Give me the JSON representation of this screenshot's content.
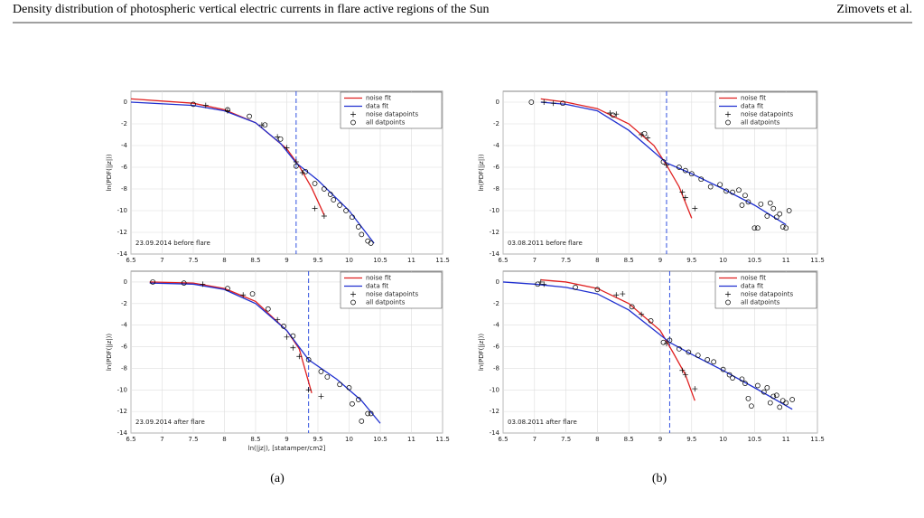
{
  "header": {
    "title": "Density distribution of photospheric vertical electric currents in flare active regions of the Sun",
    "authors": "Zimovets et al."
  },
  "captions": [
    "(a)",
    "(b)"
  ],
  "chart_data": [
    {
      "type": "line",
      "ylabel": "ln(PDF(|jz|))",
      "annotation": "23.09.2014 before flare",
      "xlim": [
        6.5,
        11.5
      ],
      "xticks": [
        6.5,
        7,
        7.5,
        8,
        8.5,
        9,
        9.5,
        10,
        10.5,
        11,
        11.5
      ],
      "ylim": [
        -14,
        1
      ],
      "yticks": [
        -14,
        -12,
        -10,
        -8,
        -6,
        -4,
        -2,
        0
      ],
      "grid": true,
      "legend": "upper right",
      "vline": 9.15,
      "vline_color": "#3050e0",
      "series": [
        {
          "name": "noise fit",
          "color": "#e02020",
          "style": "line",
          "x": [
            6.5,
            7.5,
            8,
            8.5,
            9,
            9.2,
            9.4,
            9.6
          ],
          "values": [
            0.3,
            -0.1,
            -0.7,
            -1.9,
            -4.3,
            -5.9,
            -7.9,
            -10.4
          ]
        },
        {
          "name": "data fit",
          "color": "#2030d0",
          "style": "line",
          "x": [
            6.5,
            7.5,
            8,
            8.5,
            8.9,
            9.15,
            9.5,
            10,
            10.4
          ],
          "values": [
            0,
            -0.3,
            -0.8,
            -1.9,
            -3.8,
            -5.6,
            -7.2,
            -10,
            -13
          ]
        },
        {
          "name": "noise datapoints",
          "color": "#000000",
          "style": "plus",
          "x": [
            7.7,
            8.05,
            8.6,
            8.85,
            9.0,
            9.15,
            9.25,
            9.45,
            9.6
          ],
          "values": [
            -0.3,
            -0.8,
            -2.1,
            -3.2,
            -4.2,
            -5.5,
            -6.5,
            -9.8,
            -10.5
          ]
        },
        {
          "name": "all datpoints",
          "color": "#000000",
          "style": "circle",
          "x": [
            7.5,
            8.05,
            8.4,
            8.65,
            8.9,
            9.15,
            9.3,
            9.45,
            9.6,
            9.7,
            9.75,
            9.85,
            9.95,
            10.05,
            10.15,
            10.2,
            10.3,
            10.35
          ],
          "values": [
            -0.2,
            -0.7,
            -1.3,
            -2.1,
            -3.4,
            -5.9,
            -6.4,
            -7.5,
            -8.0,
            -8.5,
            -9.0,
            -9.5,
            -10.0,
            -10.6,
            -11.5,
            -12.2,
            -12.8,
            -13.0
          ]
        }
      ]
    },
    {
      "type": "line",
      "ylabel": "ln(PDF(|jz|))",
      "xlabel": "ln(|jz|), [statamper/cm2]",
      "annotation": "23.09.2014 after flare",
      "xlim": [
        6.5,
        11.5
      ],
      "xticks": [
        6.5,
        7,
        7.5,
        8,
        8.5,
        9,
        9.5,
        10,
        10.5,
        11,
        11.5
      ],
      "ylim": [
        -14,
        1
      ],
      "yticks": [
        -14,
        -12,
        -10,
        -8,
        -6,
        -4,
        -2,
        0
      ],
      "grid": true,
      "legend": "upper right",
      "vline": 9.35,
      "vline_color": "#3050e0",
      "series": [
        {
          "name": "noise fit",
          "color": "#e02020",
          "style": "line",
          "x": [
            6.8,
            7.5,
            8,
            8.5,
            9,
            9.2,
            9.4
          ],
          "values": [
            0,
            -0.1,
            -0.6,
            -1.8,
            -4.5,
            -6.2,
            -10.3
          ]
        },
        {
          "name": "data fit",
          "color": "#2030d0",
          "style": "line",
          "x": [
            6.8,
            7.5,
            8,
            8.5,
            9,
            9.35,
            9.8,
            10.2,
            10.5
          ],
          "values": [
            -0.1,
            -0.2,
            -0.7,
            -2,
            -4.5,
            -7.2,
            -9,
            -11,
            -13.1
          ]
        },
        {
          "name": "noise datapoints",
          "color": "#000000",
          "style": "plus",
          "x": [
            7.65,
            8.3,
            8.85,
            9.0,
            9.1,
            9.2,
            9.35,
            9.55
          ],
          "values": [
            -0.2,
            -1.2,
            -3.5,
            -5.1,
            -6.1,
            -6.9,
            -10,
            -10.6
          ]
        },
        {
          "name": "all datpoints",
          "color": "#000000",
          "style": "circle",
          "x": [
            6.85,
            7.35,
            8.05,
            8.45,
            8.7,
            8.95,
            9.1,
            9.35,
            9.55,
            9.65,
            9.85,
            10.0,
            10.05,
            10.15,
            10.2,
            10.3,
            10.35
          ],
          "values": [
            0,
            -0.1,
            -0.6,
            -1.1,
            -2.5,
            -4.1,
            -5.0,
            -7.2,
            -8.3,
            -8.8,
            -9.5,
            -9.8,
            -11.3,
            -10.9,
            -12.9,
            -12.2,
            -12.2
          ]
        }
      ]
    },
    {
      "type": "line",
      "ylabel": "ln(PDF(|jz|))",
      "annotation": "03.08.2011 before flare",
      "xlim": [
        6.5,
        11.5
      ],
      "xticks": [
        6.5,
        7,
        7.5,
        8,
        8.5,
        9,
        9.5,
        10,
        10.5,
        11,
        11.5
      ],
      "ylim": [
        -14,
        1
      ],
      "yticks": [
        -14,
        -12,
        -10,
        -8,
        -6,
        -4,
        -2,
        0
      ],
      "grid": true,
      "legend": "upper right",
      "vline": 9.1,
      "vline_color": "#3050e0",
      "series": [
        {
          "name": "noise fit",
          "color": "#e02020",
          "style": "line",
          "x": [
            7.1,
            7.5,
            8,
            8.5,
            8.9,
            9.1,
            9.3,
            9.5
          ],
          "values": [
            0.3,
            0,
            -0.6,
            -2,
            -4,
            -5.8,
            -7.8,
            -10.7
          ]
        },
        {
          "name": "data fit",
          "color": "#2030d0",
          "style": "line",
          "x": [
            7.1,
            7.5,
            8,
            8.5,
            9.1,
            9.5,
            10,
            10.5,
            11
          ],
          "values": [
            0,
            -0.2,
            -0.8,
            -2.6,
            -5.6,
            -6.6,
            -8,
            -9.5,
            -11.3
          ]
        },
        {
          "name": "noise datapoints",
          "color": "#000000",
          "style": "plus",
          "x": [
            7.15,
            7.3,
            8.2,
            8.3,
            8.7,
            8.8,
            9.1,
            9.35,
            9.4,
            9.55
          ],
          "values": [
            0,
            -0.1,
            -1,
            -1.1,
            -3,
            -3.3,
            -5.8,
            -8.3,
            -8.8,
            -9.8
          ]
        },
        {
          "name": "all datpoints",
          "color": "#000000",
          "style": "circle",
          "x": [
            6.95,
            7.45,
            8.25,
            8.75,
            9.05,
            9.3,
            9.4,
            9.5,
            9.65,
            9.8,
            9.95,
            10.05,
            10.15,
            10.25,
            10.3,
            10.35,
            10.4,
            10.5,
            10.55,
            10.6,
            10.7,
            10.75,
            10.8,
            10.85,
            10.9,
            10.95,
            11.0,
            11.05
          ],
          "values": [
            0,
            -0.1,
            -1.2,
            -2.9,
            -5.5,
            -6.0,
            -6.3,
            -6.6,
            -7.1,
            -7.8,
            -7.6,
            -8.2,
            -8.3,
            -8.1,
            -9.5,
            -8.6,
            -9.2,
            -11.6,
            -11.6,
            -9.4,
            -10.5,
            -9.3,
            -9.8,
            -10.6,
            -10.3,
            -11.5,
            -11.6,
            -10.0
          ]
        }
      ]
    },
    {
      "type": "line",
      "ylabel": "ln(PDF(|jz|))",
      "annotation": "03.08.2011 after flare",
      "xlim": [
        6.5,
        11.5
      ],
      "xticks": [
        6.5,
        7,
        7.5,
        8,
        8.5,
        9,
        9.5,
        10,
        10.5,
        11,
        11.5
      ],
      "ylim": [
        -14,
        1
      ],
      "yticks": [
        -14,
        -12,
        -10,
        -8,
        -6,
        -4,
        -2,
        0
      ],
      "grid": true,
      "legend": "upper right",
      "vline": 9.15,
      "vline_color": "#3050e0",
      "series": [
        {
          "name": "noise fit",
          "color": "#e02020",
          "style": "line",
          "x": [
            7.1,
            7.5,
            8,
            8.5,
            9,
            9.2,
            9.4,
            9.55
          ],
          "values": [
            0.2,
            0,
            -0.6,
            -2,
            -4.5,
            -6.5,
            -8.6,
            -11
          ]
        },
        {
          "name": "data fit",
          "color": "#2030d0",
          "style": "line",
          "x": [
            6.5,
            7,
            7.5,
            8,
            8.5,
            9.15,
            9.5,
            10,
            10.5,
            11.1
          ],
          "values": [
            0,
            -0.2,
            -0.5,
            -1.1,
            -2.6,
            -5.6,
            -6.7,
            -8.2,
            -9.8,
            -11.8
          ]
        },
        {
          "name": "noise datapoints",
          "color": "#000000",
          "style": "plus",
          "x": [
            7.1,
            7.15,
            8.3,
            8.4,
            8.7,
            9.1,
            9.35,
            9.4,
            9.55
          ],
          "values": [
            0,
            -0.2,
            -1.2,
            -1.1,
            -3,
            -5.7,
            -8.2,
            -8.6,
            -9.9
          ]
        },
        {
          "name": "all datpoints",
          "color": "#000000",
          "style": "circle",
          "x": [
            7.05,
            7.65,
            8.0,
            8.55,
            8.85,
            9.05,
            9.15,
            9.3,
            9.45,
            9.6,
            9.75,
            9.85,
            10.0,
            10.1,
            10.15,
            10.3,
            10.35,
            10.4,
            10.45,
            10.55,
            10.65,
            10.7,
            10.75,
            10.8,
            10.85,
            10.9,
            10.95,
            11.0,
            11.1
          ],
          "values": [
            -0.2,
            -0.5,
            -0.7,
            -2.3,
            -3.6,
            -5.6,
            -5.4,
            -6.2,
            -6.5,
            -6.8,
            -7.2,
            -7.4,
            -8.1,
            -8.6,
            -8.9,
            -9.0,
            -9.4,
            -10.8,
            -11.5,
            -9.6,
            -10.2,
            -9.8,
            -11.2,
            -10.6,
            -10.5,
            -11.6,
            -11.0,
            -11.2,
            -10.9
          ]
        }
      ]
    }
  ]
}
